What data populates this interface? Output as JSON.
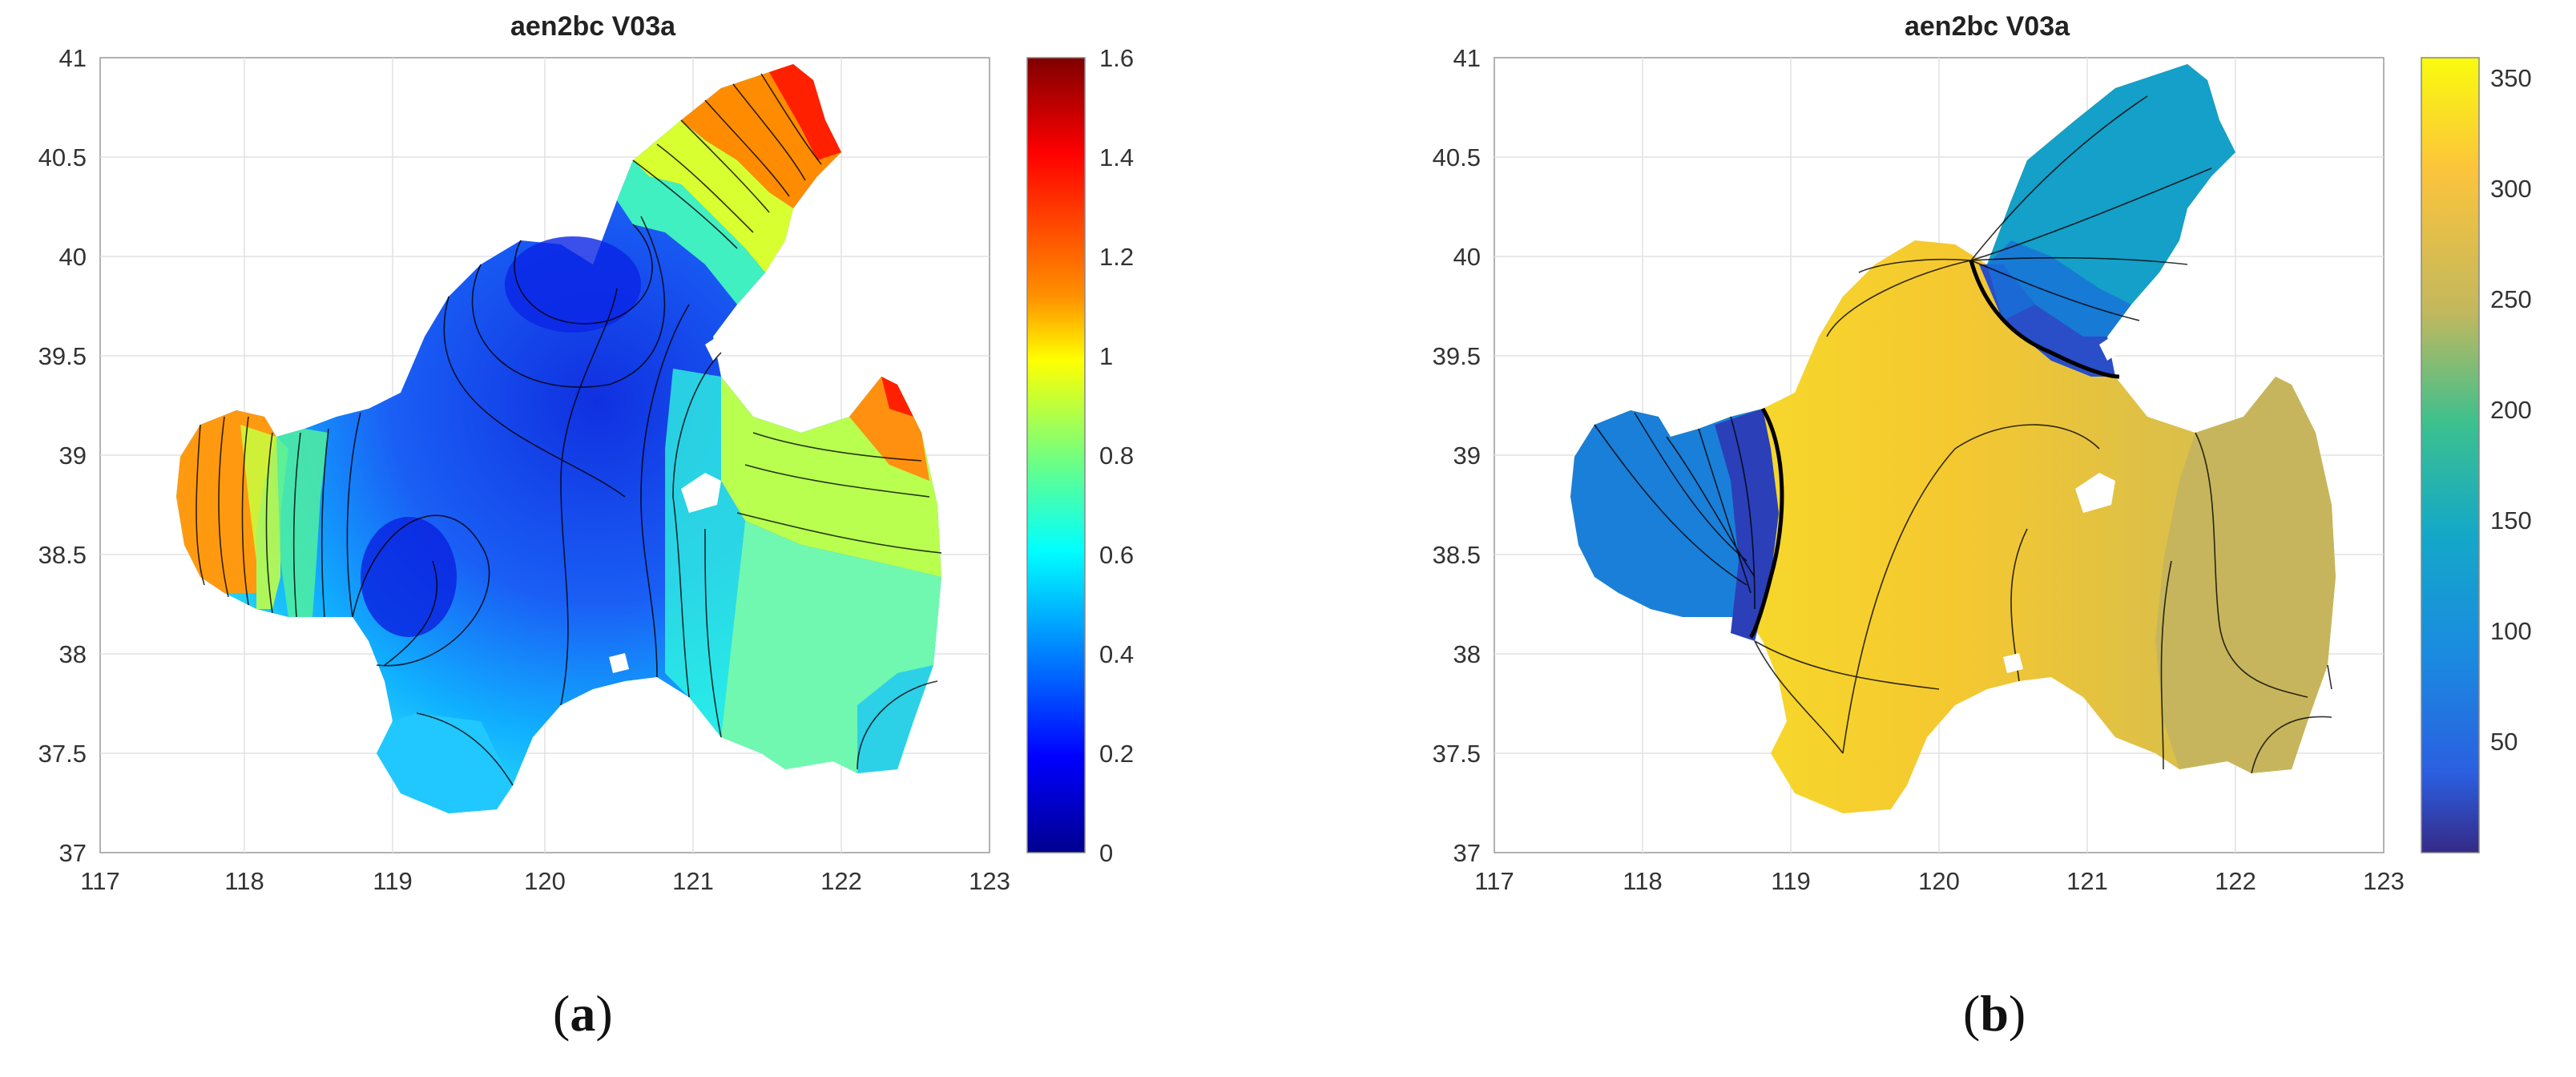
{
  "figure": {
    "panels": [
      {
        "title": "aen2bc V03a",
        "caption_letter": "a",
        "x_ticks": [
          "117",
          "118",
          "119",
          "120",
          "121",
          "122",
          "123"
        ],
        "y_ticks": [
          "41",
          "40.5",
          "40",
          "39.5",
          "39",
          "38.5",
          "38",
          "37.5",
          "37"
        ],
        "colorbar_ticks": [
          "1.6",
          "1.4",
          "1.2",
          "1",
          "0.8",
          "0.6",
          "0.4",
          "0.2",
          "0"
        ],
        "colormap": "jet"
      },
      {
        "title": "aen2bc V03a",
        "caption_letter": "b",
        "x_ticks": [
          "117",
          "118",
          "119",
          "120",
          "121",
          "122",
          "123"
        ],
        "y_ticks": [
          "41",
          "40.5",
          "40",
          "39.5",
          "39",
          "38.5",
          "38",
          "37.5",
          "37"
        ],
        "colorbar_ticks": [
          "350",
          "300",
          "250",
          "200",
          "150",
          "100",
          "50"
        ],
        "colormap": "parula"
      }
    ]
  },
  "colors": {
    "jet": [
      "#7f0000",
      "#ff0000",
      "#ff8000",
      "#ffff00",
      "#80ff80",
      "#00ffff",
      "#0080ff",
      "#0000ff",
      "#00008f"
    ],
    "parula": [
      "#f9fb0e",
      "#fcc43b",
      "#c2b85e",
      "#3cc08e",
      "#14a8c8",
      "#1a8be0",
      "#2b5fe0",
      "#352a87"
    ]
  }
}
